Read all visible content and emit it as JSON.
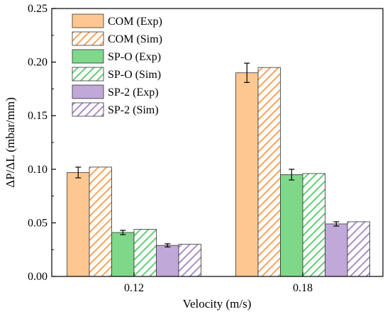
{
  "chart_data": {
    "type": "bar",
    "xlabel": "Velocity (m/s)",
    "ylabel": "ΔP/ΔL (mbar/mm)",
    "ylim": [
      0,
      0.25
    ],
    "yticks": [
      "0.00",
      "0.05",
      "0.10",
      "0.15",
      "0.20",
      "0.25"
    ],
    "categories": [
      "0.12",
      "0.18"
    ],
    "legend_position": "top-left",
    "series": [
      {
        "name": "COM (Exp)",
        "values": [
          0.097,
          0.19
        ],
        "errors": [
          0.005,
          0.009
        ],
        "color": "#fcc790",
        "pattern": "solid"
      },
      {
        "name": "COM (Sim)",
        "values": [
          0.102,
          0.195
        ],
        "color": "#f7a460",
        "pattern": "hatched"
      },
      {
        "name": "SP-O (Exp)",
        "values": [
          0.041,
          0.095
        ],
        "errors": [
          0.002,
          0.005
        ],
        "color": "#7fd88a",
        "pattern": "solid"
      },
      {
        "name": "SP-O (Sim)",
        "values": [
          0.044,
          0.096
        ],
        "color": "#66cc77",
        "pattern": "hatched"
      },
      {
        "name": "SP-2  (Exp)",
        "values": [
          0.029,
          0.049
        ],
        "errors": [
          0.0015,
          0.002
        ],
        "color": "#c0a8d8",
        "pattern": "solid"
      },
      {
        "name": "SP-2  (Sim)",
        "values": [
          0.03,
          0.051
        ],
        "color": "#a890c8",
        "pattern": "hatched"
      }
    ]
  }
}
